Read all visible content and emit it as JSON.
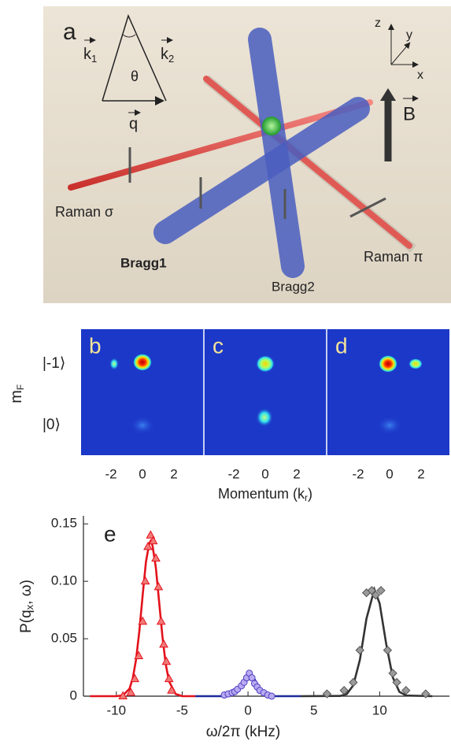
{
  "panel_a": {
    "label": "a",
    "k1": {
      "main": "k",
      "sub": "1"
    },
    "k2": {
      "main": "k",
      "sub": "2"
    },
    "theta": "θ",
    "q": "q",
    "axes": {
      "z": "z",
      "y": "y",
      "x": "x"
    },
    "field": "B",
    "raman_sigma": "Raman σ",
    "raman_pi": "Raman π",
    "bragg1": "Bragg1",
    "bragg2": "Bragg2"
  },
  "panels_bcd": {
    "panels": [
      {
        "label": "b",
        "ticks": [
          -2,
          0,
          2
        ]
      },
      {
        "label": "c",
        "ticks": [
          -2,
          0,
          2
        ]
      },
      {
        "label": "d",
        "ticks": [
          -2,
          0,
          2
        ]
      }
    ],
    "states": [
      "|-1⟩",
      "|0⟩"
    ],
    "ylabel": {
      "main": "m",
      "sub": "F"
    },
    "xlabel": {
      "main": "Momentum (k",
      "sub": "r",
      "after": ")"
    }
  },
  "chart_data": {
    "type": "scatter",
    "panel_label": "e",
    "xlabel": "ω/2π (kHz)",
    "ylabel": {
      "main": "P(q",
      "sub": "x",
      "after": ", ω)"
    },
    "xlim": [
      -12.5,
      15.3
    ],
    "xticks": [
      -10,
      -5,
      0,
      5,
      10
    ],
    "ylim": [
      0,
      0.157
    ],
    "yticks": [
      0,
      0.05,
      {
        "value": 0.1,
        "label": "0.10"
      },
      0.15
    ],
    "series": [
      {
        "mode": "line",
        "color": "#e3121c",
        "x": [
          -12,
          -10,
          -9.5,
          -9,
          -8.75,
          -8.5,
          -8.25,
          -8,
          -7.75,
          -7.5,
          -7.4,
          -7.25,
          -7,
          -6.75,
          -6.5,
          -6.25,
          -6,
          -5.5,
          -5,
          -4
        ],
        "values": [
          0,
          0,
          0.0007,
          0.0065,
          0.0156,
          0.032,
          0.057,
          0.088,
          0.117,
          0.133,
          0.135,
          0.131,
          0.112,
          0.082,
          0.052,
          0.028,
          0.013,
          0.0019,
          0,
          0
        ]
      },
      {
        "mode": "line",
        "color": "#1c2a9a",
        "x": [
          -4,
          -2,
          -1.5,
          -1,
          -0.5,
          0,
          0.1,
          0.5,
          1,
          1.5,
          2,
          4
        ],
        "values": [
          0,
          0,
          0.0003,
          0.0026,
          0.0105,
          0.0187,
          0.019,
          0.0146,
          0.005,
          0.0007,
          0,
          0
        ]
      },
      {
        "mode": "line",
        "color": "#333333",
        "x": [
          4,
          7,
          7.5,
          8,
          8.5,
          9,
          9.6,
          10,
          10.5,
          11,
          11.5,
          12,
          14
        ],
        "values": [
          0,
          0.0002,
          0.0018,
          0.0095,
          0.0317,
          0.0676,
          0.093,
          0.0807,
          0.0453,
          0.0163,
          0.0038,
          0.0006,
          0
        ]
      },
      {
        "mode": "markers",
        "marker": "triangle",
        "color": "#f07a78",
        "stroke": "#e3121c",
        "x": [
          -9.5,
          -8.9,
          -8.6,
          -8.3,
          -8.0,
          -7.8,
          -7.6,
          -7.4,
          -7.2,
          -7.0,
          -6.8,
          -6.6,
          -6.4,
          -6.2,
          -6.0,
          -5.8
        ],
        "values": [
          0,
          0.003,
          0.015,
          0.035,
          0.065,
          0.1,
          0.13,
          0.14,
          0.135,
          0.12,
          0.095,
          0.065,
          0.045,
          0.03,
          0.015,
          0.005
        ]
      },
      {
        "mode": "markers",
        "marker": "circle",
        "color": "#b9aaf2",
        "stroke": "#4f3fbf",
        "x": [
          -1.8,
          -1.5,
          -1.2,
          -1.0,
          -0.8,
          -0.5,
          -0.3,
          -0.1,
          0.1,
          0.3,
          0.5,
          0.7,
          0.9,
          1.2,
          1.5,
          1.8
        ],
        "values": [
          0.001,
          0.002,
          0.003,
          0.004,
          0.006,
          0.009,
          0.012,
          0.016,
          0.02,
          0.016,
          0.011,
          0.008,
          0.005,
          0.003,
          0.001,
          0
        ]
      },
      {
        "mode": "markers",
        "marker": "diamond",
        "color": "#9a9a9a",
        "stroke": "#555555",
        "x": [
          6.0,
          7.3,
          8.0,
          8.5,
          9.0,
          9.4,
          9.7,
          10.1,
          10.6,
          11.0,
          11.3,
          12.0,
          13.5
        ],
        "values": [
          0.002,
          0.005,
          0.012,
          0.04,
          0.09,
          0.092,
          0.088,
          0.092,
          0.04,
          0.02,
          0.012,
          0.005,
          0.002
        ]
      }
    ]
  }
}
